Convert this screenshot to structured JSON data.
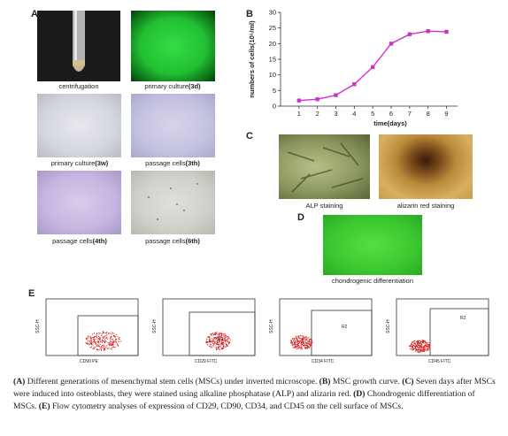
{
  "panels": {
    "A": {
      "letter": "A",
      "images": [
        {
          "label": "centrifugation",
          "label_num": ""
        },
        {
          "label": "primary culture",
          "label_num": "(3d)"
        },
        {
          "label": "primary culture",
          "label_num": "(3w)"
        },
        {
          "label": "passage cells",
          "label_num": "(3th)"
        },
        {
          "label": "passage cells",
          "label_num": "(4th)"
        },
        {
          "label": "passage cells",
          "label_num": "(6th)"
        }
      ]
    },
    "B": {
      "letter": "B"
    },
    "C": {
      "letter": "C",
      "images": [
        {
          "label": "ALP staining"
        },
        {
          "label": "alizarin red staining"
        }
      ]
    },
    "D": {
      "letter": "D",
      "images": [
        {
          "label": "chondrogenic differentiation"
        }
      ]
    },
    "E": {
      "letter": "E",
      "plots": [
        {
          "xlabel": "CD90 PE",
          "ylabel": "SSC-H",
          "gate_label": "R2"
        },
        {
          "xlabel": "CD29 FITC",
          "ylabel": "SSC-H",
          "gate_label": "R2"
        },
        {
          "xlabel": "CD34 FITC",
          "ylabel": "SSC-H",
          "gate_label": "R2"
        },
        {
          "xlabel": "CD45 FITC",
          "ylabel": "SSC-H",
          "gate_label": "R2"
        }
      ]
    }
  },
  "chart_data": {
    "type": "line",
    "x": [
      1,
      2,
      3,
      4,
      5,
      6,
      7,
      8,
      9
    ],
    "series": [
      {
        "values": [
          1.8,
          2.2,
          3.5,
          7,
          12.5,
          20,
          23,
          24,
          23.8
        ]
      }
    ],
    "xlabel": "time(days)",
    "ylabel": "numbers of cells(10⁵/ml)",
    "xlim": [
      0,
      9.6
    ],
    "ylim": [
      0,
      30
    ],
    "yticks": [
      0,
      5,
      10,
      15,
      20,
      25,
      30
    ],
    "xticks": [
      1,
      2,
      3,
      4,
      5,
      6,
      7,
      8,
      9
    ],
    "color": "#cc33cc",
    "grid": false
  },
  "caption": {
    "parts": [
      {
        "bold": "(A)",
        "text": " Different generations of mesenchymal stem cells (MSCs) under inverted microscope. "
      },
      {
        "bold": "(B)",
        "text": " MSC growth curve. "
      },
      {
        "bold": "(C)",
        "text": " Seven days after MSCs were induced into osteoblasts, they were stained using alkaline phosphatase (ALP) and alizarin red. "
      },
      {
        "bold": "(D)",
        "text": " Chondrogenic differentiation of MSCs. "
      },
      {
        "bold": "(E)",
        "text": " Flow cytometry analyses of expression of CD29, CD90, CD34, and CD45 on the cell surface of MSCs."
      }
    ]
  }
}
